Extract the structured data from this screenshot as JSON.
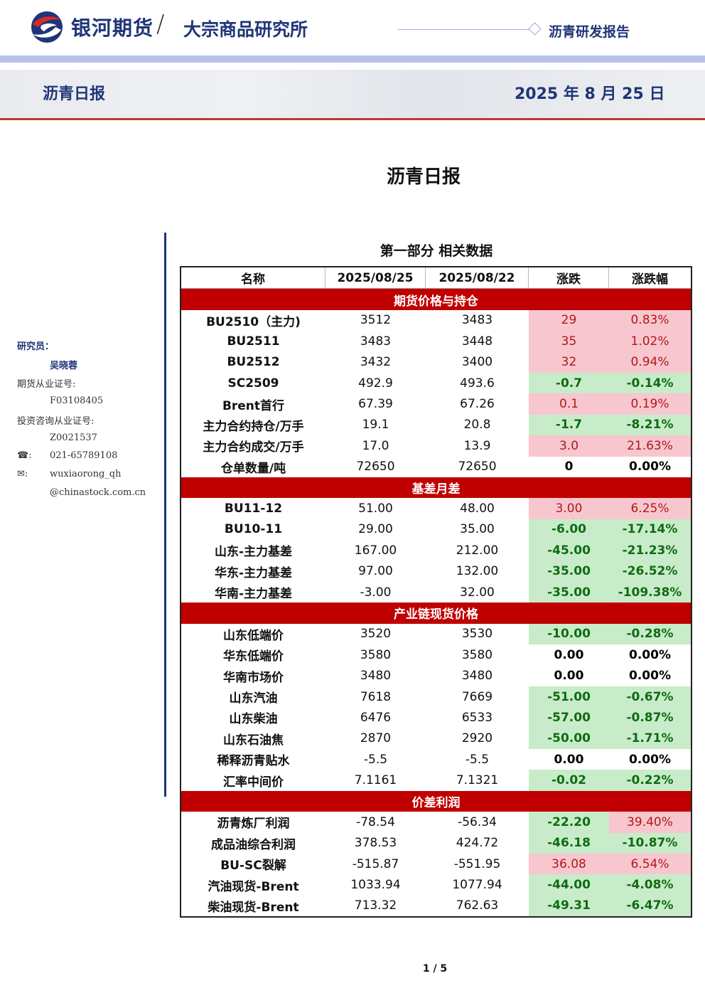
{
  "header": {
    "brand": "银河期货",
    "separator": "/",
    "department": "大宗商品研究所",
    "report_type": "沥青研发报告",
    "band_title": "沥青日报",
    "band_date": "2025 年 8 月 25 日"
  },
  "doc_title": "沥青日报",
  "sidebar": {
    "researcher_label": "研究员：",
    "researcher_name": "吴晓蓉",
    "futures_license_label": "期货从业证号:",
    "futures_license": "F03108405",
    "consult_license_label": "投资咨询从业证号:",
    "consult_license": "Z0021537",
    "phone_icon": "☎:",
    "phone": "021-65789108",
    "email_icon": "✉:",
    "email_1": "wuxiaorong_qh",
    "email_2": "@chinastock.com.cn"
  },
  "section_title": "第一部分 相关数据",
  "table": {
    "headers": [
      "名称",
      "2025/08/25",
      "2025/08/22",
      "涨跌",
      "涨跌幅"
    ],
    "groups": [
      {
        "title": "期货价格与持仓",
        "rows": [
          {
            "name": "BU2510（主力)",
            "v1": "3512",
            "v2": "3483",
            "chg": "29",
            "pct": "0.83%",
            "dir": "up"
          },
          {
            "name": "BU2511",
            "v1": "3483",
            "v2": "3448",
            "chg": "35",
            "pct": "1.02%",
            "dir": "up"
          },
          {
            "name": "BU2512",
            "v1": "3432",
            "v2": "3400",
            "chg": "32",
            "pct": "0.94%",
            "dir": "up"
          },
          {
            "name": "SC2509",
            "v1": "492.9",
            "v2": "493.6",
            "chg": "-0.7",
            "pct": "-0.14%",
            "dir": "dn"
          },
          {
            "name": "Brent首行",
            "v1": "67.39",
            "v2": "67.26",
            "chg": "0.1",
            "pct": "0.19%",
            "dir": "up"
          },
          {
            "name": "主力合约持仓/万手",
            "v1": "19.1",
            "v2": "20.8",
            "chg": "-1.7",
            "pct": "-8.21%",
            "dir": "dn"
          },
          {
            "name": "主力合约成交/万手",
            "v1": "17.0",
            "v2": "13.9",
            "chg": "3.0",
            "pct": "21.63%",
            "dir": "up"
          },
          {
            "name": "仓单数量/吨",
            "v1": "72650",
            "v2": "72650",
            "chg": "0",
            "pct": "0.00%",
            "dir": "zr"
          }
        ]
      },
      {
        "title": "基差月差",
        "rows": [
          {
            "name": "BU11-12",
            "v1": "51.00",
            "v2": "48.00",
            "chg": "3.00",
            "pct": "6.25%",
            "dir": "up"
          },
          {
            "name": "BU10-11",
            "v1": "29.00",
            "v2": "35.00",
            "chg": "-6.00",
            "pct": "-17.14%",
            "dir": "dn"
          },
          {
            "name": "山东-主力基差",
            "v1": "167.00",
            "v2": "212.00",
            "chg": "-45.00",
            "pct": "-21.23%",
            "dir": "dn"
          },
          {
            "name": "华东-主力基差",
            "v1": "97.00",
            "v2": "132.00",
            "chg": "-35.00",
            "pct": "-26.52%",
            "dir": "dn"
          },
          {
            "name": "华南-主力基差",
            "v1": "-3.00",
            "v2": "32.00",
            "chg": "-35.00",
            "pct": "-109.38%",
            "dir": "dn"
          }
        ]
      },
      {
        "title": "产业链现货价格",
        "rows": [
          {
            "name": "山东低端价",
            "v1": "3520",
            "v2": "3530",
            "chg": "-10.00",
            "pct": "-0.28%",
            "dir": "dn"
          },
          {
            "name": "华东低端价",
            "v1": "3580",
            "v2": "3580",
            "chg": "0.00",
            "pct": "0.00%",
            "dir": "zr"
          },
          {
            "name": "华南市场价",
            "v1": "3480",
            "v2": "3480",
            "chg": "0.00",
            "pct": "0.00%",
            "dir": "zr"
          },
          {
            "name": "山东汽油",
            "v1": "7618",
            "v2": "7669",
            "chg": "-51.00",
            "pct": "-0.67%",
            "dir": "dn"
          },
          {
            "name": "山东柴油",
            "v1": "6476",
            "v2": "6533",
            "chg": "-57.00",
            "pct": "-0.87%",
            "dir": "dn"
          },
          {
            "name": "山东石油焦",
            "v1": "2870",
            "v2": "2920",
            "chg": "-50.00",
            "pct": "-1.71%",
            "dir": "dn"
          },
          {
            "name": "稀释沥青贴水",
            "v1": "-5.5",
            "v2": "-5.5",
            "chg": "0.00",
            "pct": "0.00%",
            "dir": "zr"
          },
          {
            "name": "汇率中间价",
            "v1": "7.1161",
            "v2": "7.1321",
            "chg": "-0.02",
            "pct": "-0.22%",
            "dir": "dn"
          }
        ]
      },
      {
        "title": "价差利润",
        "rows": [
          {
            "name": "沥青炼厂利润",
            "v1": "-78.54",
            "v2": "-56.34",
            "chg": "-22.20",
            "pct": "39.40%",
            "dir": "dn",
            "pctdir": "up"
          },
          {
            "name": "成品油综合利润",
            "v1": "378.53",
            "v2": "424.72",
            "chg": "-46.18",
            "pct": "-10.87%",
            "dir": "dn"
          },
          {
            "name": "BU-SC裂解",
            "v1": "-515.87",
            "v2": "-551.95",
            "chg": "36.08",
            "pct": "6.54%",
            "dir": "up"
          },
          {
            "name": "汽油现货-Brent",
            "v1": "1033.94",
            "v2": "1077.94",
            "chg": "-44.00",
            "pct": "-4.08%",
            "dir": "dn"
          },
          {
            "name": "柴油现货-Brent",
            "v1": "713.32",
            "v2": "762.63",
            "chg": "-49.31",
            "pct": "-6.47%",
            "dir": "dn"
          }
        ]
      }
    ]
  },
  "page_number": "1 / 5",
  "colors": {
    "brand_blue": "#1f3577",
    "section_red": "#c00000",
    "up_bg": "#f7c6ce",
    "down_bg": "#c8ecc9"
  }
}
